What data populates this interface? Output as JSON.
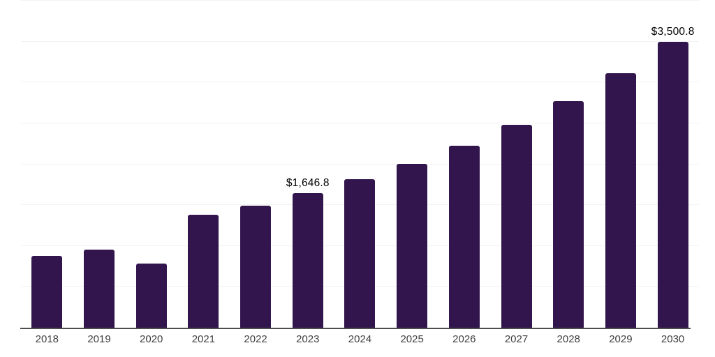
{
  "chart_data": {
    "type": "bar",
    "title": "",
    "xlabel": "",
    "ylabel": "",
    "categories": [
      "2018",
      "2019",
      "2020",
      "2021",
      "2022",
      "2023",
      "2024",
      "2025",
      "2026",
      "2027",
      "2028",
      "2029",
      "2030"
    ],
    "values": [
      877,
      954,
      788,
      1378,
      1491,
      1646.8,
      1818,
      2004,
      2224,
      2481,
      2770,
      3110,
      3500.8
    ],
    "point_labels": {
      "2023": "$1,646.8",
      "2030": "$3,500.8"
    },
    "ylim": [
      0,
      4000
    ],
    "gridline_step": 500,
    "grid": "horizontal-only",
    "legend_position": "none",
    "y_axis_tick_labels_visible": false,
    "colors": {
      "bar": "#31154c",
      "gridline": "#f2f2f2",
      "axis_line": "#4d4d4d",
      "tick_label": "#3f3f3f",
      "data_label": "#000000",
      "background": "#ffffff"
    }
  }
}
